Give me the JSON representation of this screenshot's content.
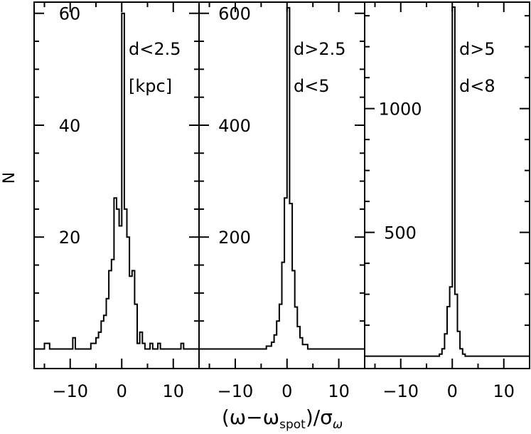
{
  "chart_data": {
    "type": "histogram",
    "ylabel": "N",
    "xlabel_main": "(ω−ω",
    "xlabel_sub": "spot",
    "xlabel_tail": ")/σ",
    "xlabel_tail_sub": "ω",
    "xlim": [
      -17,
      15
    ],
    "xticks": [
      -10,
      0,
      10
    ],
    "grid": false,
    "panels": [
      {
        "labels": [
          "d<2.5",
          "[kpc]"
        ],
        "ylim": [
          -3.5,
          62
        ],
        "yticks": [
          20,
          40,
          60
        ],
        "steps": [
          [
            -17,
            0
          ],
          [
            -15,
            0
          ],
          [
            -15,
            1
          ],
          [
            -14,
            1
          ],
          [
            -14,
            0
          ],
          [
            -9.5,
            0
          ],
          [
            -9.5,
            2
          ],
          [
            -9,
            2
          ],
          [
            -9,
            0
          ],
          [
            -6,
            0
          ],
          [
            -6,
            1
          ],
          [
            -5,
            1
          ],
          [
            -5,
            2
          ],
          [
            -4.5,
            2
          ],
          [
            -4.5,
            3
          ],
          [
            -4,
            3
          ],
          [
            -4,
            5
          ],
          [
            -3.5,
            5
          ],
          [
            -3.5,
            6
          ],
          [
            -3,
            6
          ],
          [
            -3,
            9
          ],
          [
            -2.5,
            9
          ],
          [
            -2.5,
            14
          ],
          [
            -2,
            14
          ],
          [
            -2,
            16
          ],
          [
            -1.5,
            16
          ],
          [
            -1.5,
            27
          ],
          [
            -1,
            27
          ],
          [
            -1,
            25
          ],
          [
            -0.5,
            25
          ],
          [
            -0.5,
            22
          ],
          [
            0,
            22
          ],
          [
            0,
            60
          ],
          [
            0.5,
            60
          ],
          [
            0.5,
            25
          ],
          [
            1,
            25
          ],
          [
            1,
            20
          ],
          [
            1.5,
            20
          ],
          [
            1.5,
            13
          ],
          [
            2,
            13
          ],
          [
            2,
            14
          ],
          [
            2.5,
            14
          ],
          [
            2.5,
            8
          ],
          [
            3,
            8
          ],
          [
            3,
            1
          ],
          [
            3.5,
            1
          ],
          [
            3.5,
            3
          ],
          [
            4,
            3
          ],
          [
            4,
            1
          ],
          [
            4.5,
            1
          ],
          [
            4.5,
            0
          ],
          [
            5.5,
            0
          ],
          [
            5.5,
            1
          ],
          [
            6,
            1
          ],
          [
            6,
            0
          ],
          [
            7,
            0
          ],
          [
            7,
            1
          ],
          [
            7.5,
            1
          ],
          [
            7.5,
            0
          ],
          [
            11.5,
            0
          ],
          [
            11.5,
            1
          ],
          [
            12,
            1
          ],
          [
            12,
            0
          ],
          [
            15,
            0
          ]
        ]
      },
      {
        "labels": [
          "d>2.5",
          "d<5"
        ],
        "ylim": [
          -35,
          620
        ],
        "yticks": [
          200,
          400,
          600
        ],
        "steps": [
          [
            -17,
            0
          ],
          [
            -4,
            0
          ],
          [
            -4,
            5
          ],
          [
            -3,
            5
          ],
          [
            -3,
            12
          ],
          [
            -2.5,
            12
          ],
          [
            -2.5,
            25
          ],
          [
            -2,
            25
          ],
          [
            -2,
            50
          ],
          [
            -1.5,
            50
          ],
          [
            -1.5,
            80
          ],
          [
            -1,
            80
          ],
          [
            -1,
            155
          ],
          [
            -0.5,
            155
          ],
          [
            -0.5,
            270
          ],
          [
            0,
            270
          ],
          [
            0,
            610
          ],
          [
            0.5,
            610
          ],
          [
            0.5,
            260
          ],
          [
            1,
            260
          ],
          [
            1,
            140
          ],
          [
            1.5,
            140
          ],
          [
            1.5,
            75
          ],
          [
            2,
            75
          ],
          [
            2,
            40
          ],
          [
            2.5,
            40
          ],
          [
            2.5,
            20
          ],
          [
            3,
            20
          ],
          [
            3,
            8
          ],
          [
            4,
            8
          ],
          [
            4,
            0
          ],
          [
            15,
            0
          ]
        ]
      },
      {
        "labels": [
          "d>5",
          "d<8"
        ],
        "ylim": [
          -50,
          1430
        ],
        "yticks": [
          500,
          1000
        ],
        "steps": [
          [
            -17,
            0
          ],
          [
            -2.5,
            0
          ],
          [
            -2.5,
            8
          ],
          [
            -2,
            8
          ],
          [
            -2,
            30
          ],
          [
            -1.5,
            30
          ],
          [
            -1.5,
            90
          ],
          [
            -1,
            90
          ],
          [
            -1,
            200
          ],
          [
            -0.5,
            200
          ],
          [
            -0.5,
            280
          ],
          [
            0,
            280
          ],
          [
            0,
            1410
          ],
          [
            0.5,
            1410
          ],
          [
            0.5,
            250
          ],
          [
            1,
            250
          ],
          [
            1,
            100
          ],
          [
            1.5,
            100
          ],
          [
            1.5,
            30
          ],
          [
            2,
            30
          ],
          [
            2,
            8
          ],
          [
            2.5,
            8
          ],
          [
            2.5,
            0
          ],
          [
            15,
            0
          ]
        ]
      }
    ]
  }
}
